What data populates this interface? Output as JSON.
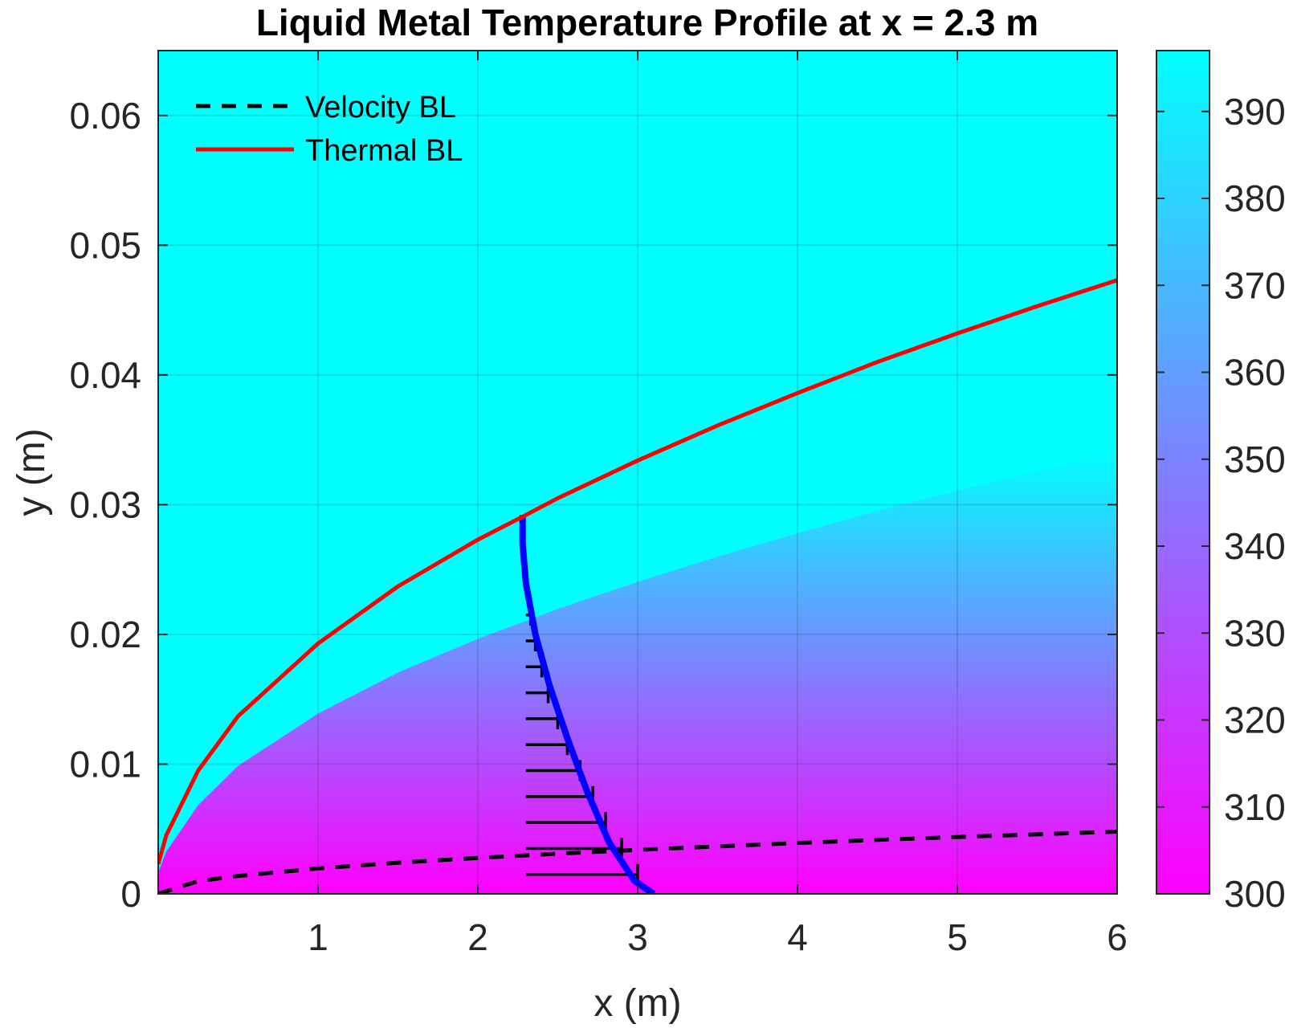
{
  "chart_data": {
    "type": "heatmap",
    "title": "Liquid Metal Temperature Profile at x = 2.3 m",
    "xlabel": "x (m)",
    "ylabel": "y (m)",
    "xlim": [
      0,
      6
    ],
    "ylim": [
      0,
      0.065
    ],
    "xticks": [
      1,
      2,
      3,
      4,
      5,
      6
    ],
    "xtick_labels": [
      "1",
      "2",
      "3",
      "4",
      "5",
      "6"
    ],
    "yticks": [
      0,
      0.01,
      0.02,
      0.03,
      0.04,
      0.05,
      0.06
    ],
    "ytick_labels": [
      "0",
      "0.01",
      "0.02",
      "0.03",
      "0.04",
      "0.05",
      "0.06"
    ],
    "grid": true,
    "colormap": {
      "low_color": "#00ffff",
      "high_color": "#ff00ff",
      "range": [
        300,
        397
      ]
    },
    "colorbar": {
      "ticks": [
        300,
        310,
        320,
        330,
        340,
        350,
        360,
        370,
        380,
        390
      ],
      "tick_labels": [
        "300",
        "310",
        "320",
        "330",
        "340",
        "350",
        "360",
        "370",
        "380",
        "390"
      ]
    },
    "legend": {
      "position": "top-left"
    },
    "series": [
      {
        "name": "Velocity BL",
        "style": "dashed",
        "color": "#000000",
        "x": [
          0,
          0.25,
          0.5,
          1,
          1.5,
          2,
          2.5,
          3,
          3.5,
          4,
          4.5,
          5,
          5.5,
          6
        ],
        "y": [
          0,
          0.00098,
          0.00138,
          0.00196,
          0.0024,
          0.00277,
          0.0031,
          0.00339,
          0.00366,
          0.00392,
          0.00416,
          0.00438,
          0.00459,
          0.0048
        ]
      },
      {
        "name": "Thermal BL",
        "style": "solid",
        "color": "#ff0000",
        "x": [
          0,
          0.05,
          0.25,
          0.5,
          1,
          1.5,
          2,
          2.3,
          2.5,
          3,
          3.5,
          4,
          4.5,
          5,
          5.5,
          6
        ],
        "y": [
          0.0023,
          0.0045,
          0.0095,
          0.0137,
          0.0193,
          0.0237,
          0.0273,
          0.0292,
          0.0305,
          0.0334,
          0.0361,
          0.0386,
          0.041,
          0.0432,
          0.0453,
          0.0473
        ]
      }
    ],
    "temperature_profile": {
      "x_position": 2.3,
      "color": "#0000ff",
      "points_x": [
        2.28,
        2.28,
        2.3,
        2.36,
        2.45,
        2.56,
        2.68,
        2.82,
        2.98,
        3.1
      ],
      "points_y": [
        0.0292,
        0.027,
        0.024,
        0.02,
        0.016,
        0.012,
        0.008,
        0.004,
        0.001,
        0
      ]
    },
    "profile_arrows": {
      "color": "#000000",
      "y": [
        0.0015,
        0.0035,
        0.0055,
        0.0075,
        0.0095,
        0.0115,
        0.0135,
        0.0155,
        0.0175,
        0.0195,
        0.0215,
        0.0235
      ],
      "x_end": [
        3.0,
        2.9,
        2.8,
        2.72,
        2.64,
        2.56,
        2.5,
        2.44,
        2.4,
        2.36,
        2.33,
        2.31
      ]
    }
  }
}
